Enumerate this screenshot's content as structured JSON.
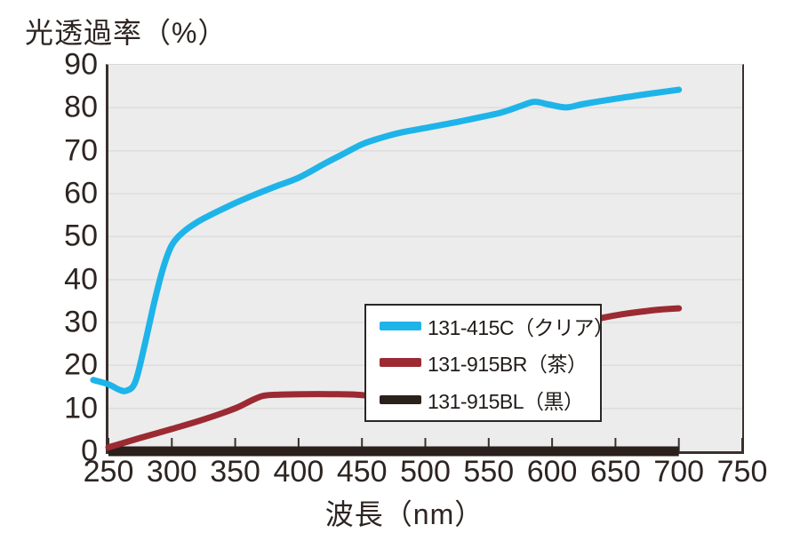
{
  "title": "光透過率（%）",
  "x_axis_title": "波長（nm）",
  "colors": {
    "plot_background": "#ececec",
    "grid": "#dddddd",
    "axis": "#3a312c",
    "text": "#2d2522",
    "legend_border": "#2b2724",
    "clear_line": "#1eb4e9",
    "brown_line": "#9c2a33",
    "black_line": "#2b201b"
  },
  "chart_data": {
    "type": "line",
    "title": "光透過率（%）",
    "xlabel": "波長（nm）",
    "ylabel": "光透過率（%）",
    "xlim": [
      250,
      750
    ],
    "ylim": [
      0,
      90
    ],
    "x_ticks": [
      250,
      300,
      350,
      400,
      450,
      500,
      550,
      600,
      650,
      700,
      750
    ],
    "y_ticks": [
      0,
      10,
      20,
      30,
      40,
      50,
      60,
      70,
      80,
      90
    ],
    "grid": true,
    "legend_position": "inside-left-middle",
    "series": [
      {
        "id": "clear",
        "name": "131-415C（クリア）",
        "color": "#1eb4e9",
        "width": 7,
        "linecap": "round",
        "smooth": true,
        "points": [
          [
            238,
            16.6
          ],
          [
            250,
            15.6
          ],
          [
            258,
            14.4
          ],
          [
            264,
            14.1
          ],
          [
            271,
            16.0
          ],
          [
            278,
            24.0
          ],
          [
            286,
            34.5
          ],
          [
            293,
            42.5
          ],
          [
            300,
            48.0
          ],
          [
            310,
            51.3
          ],
          [
            322,
            53.7
          ],
          [
            335,
            55.7
          ],
          [
            350,
            57.8
          ],
          [
            365,
            59.7
          ],
          [
            382,
            61.7
          ],
          [
            400,
            63.7
          ],
          [
            420,
            66.9
          ],
          [
            435,
            69.2
          ],
          [
            450,
            71.5
          ],
          [
            465,
            73.0
          ],
          [
            480,
            74.2
          ],
          [
            500,
            75.3
          ],
          [
            520,
            76.4
          ],
          [
            540,
            77.6
          ],
          [
            560,
            78.9
          ],
          [
            575,
            80.4
          ],
          [
            586,
            81.4
          ],
          [
            597,
            80.8
          ],
          [
            611,
            80.1
          ],
          [
            625,
            80.9
          ],
          [
            650,
            82.1
          ],
          [
            675,
            83.2
          ],
          [
            700,
            84.2
          ]
        ]
      },
      {
        "id": "brown",
        "name": "131-915BR（茶）",
        "color": "#9c2a33",
        "width": 7,
        "linecap": "round",
        "smooth": true,
        "points": [
          [
            250,
            0.9
          ],
          [
            275,
            3.1
          ],
          [
            300,
            5.2
          ],
          [
            325,
            7.4
          ],
          [
            350,
            10.0
          ],
          [
            362,
            11.7
          ],
          [
            372,
            12.9
          ],
          [
            385,
            13.2
          ],
          [
            405,
            13.3
          ],
          [
            425,
            13.3
          ],
          [
            445,
            13.2
          ],
          [
            458,
            12.8
          ],
          [
            470,
            11.7
          ],
          [
            482,
            10.5
          ],
          [
            494,
            9.5
          ],
          [
            505,
            9.1
          ],
          [
            516,
            9.4
          ],
          [
            527,
            9.4
          ],
          [
            538,
            9.1
          ],
          [
            548,
            9.3
          ],
          [
            557,
            10.6
          ],
          [
            567,
            14.0
          ],
          [
            578,
            18.0
          ],
          [
            590,
            23.0
          ],
          [
            600,
            26.3
          ],
          [
            612,
            28.5
          ],
          [
            625,
            30.0
          ],
          [
            640,
            31.1
          ],
          [
            655,
            31.9
          ],
          [
            670,
            32.5
          ],
          [
            685,
            33.0
          ],
          [
            700,
            33.3
          ]
        ]
      },
      {
        "id": "black",
        "name": "131-915BL（黒）",
        "color": "#2b201b",
        "width": 11,
        "linecap": "butt",
        "smooth": false,
        "points": [
          [
            250,
            0
          ],
          [
            700,
            0
          ]
        ]
      }
    ]
  }
}
